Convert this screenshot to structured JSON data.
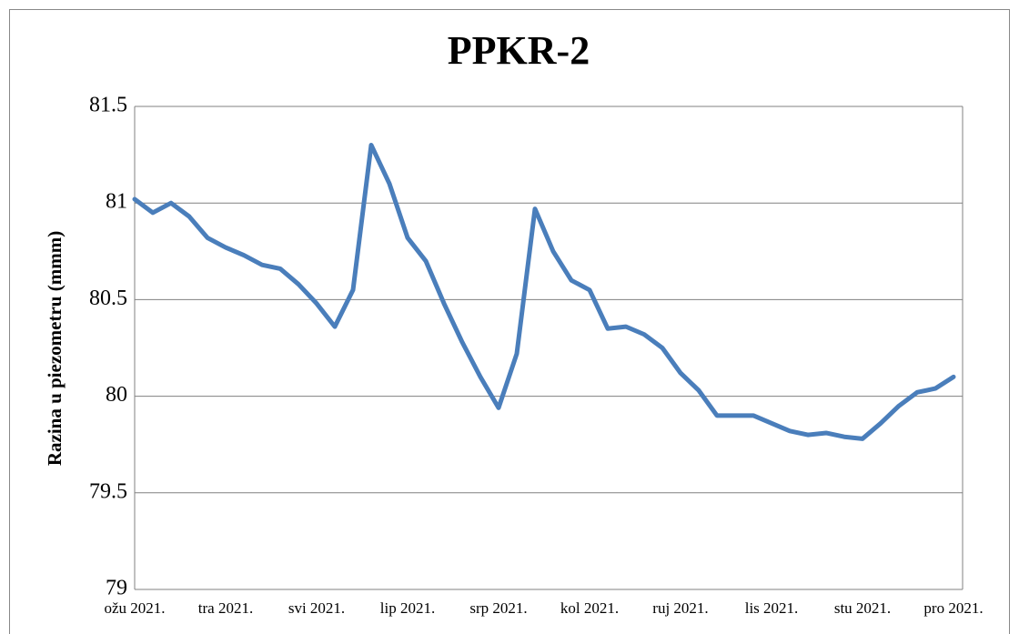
{
  "chart_data": {
    "type": "line",
    "title": "PPKR-2",
    "y_label": "Razina u piezometru (mmm)",
    "categories": [
      "ožu 2021.",
      null,
      null,
      null,
      null,
      "tra 2021.",
      null,
      null,
      null,
      null,
      "svi 2021.",
      null,
      null,
      null,
      null,
      "lip 2021.",
      null,
      null,
      null,
      null,
      "srp 2021.",
      null,
      null,
      null,
      null,
      "kol 2021.",
      null,
      null,
      null,
      null,
      "ruj 2021.",
      null,
      null,
      null,
      null,
      "lis 2021.",
      null,
      null,
      null,
      null,
      "stu 2021.",
      null,
      null,
      null,
      null,
      "pro 2021."
    ],
    "series": [
      {
        "name": "PPKR-2",
        "color": "#4a7ebb",
        "values": [
          81.02,
          80.95,
          81.0,
          80.93,
          80.82,
          80.77,
          80.73,
          80.68,
          80.66,
          80.58,
          80.48,
          80.36,
          80.55,
          81.3,
          81.1,
          80.82,
          80.7,
          80.48,
          80.28,
          80.1,
          79.94,
          80.22,
          80.97,
          80.75,
          80.6,
          80.55,
          80.35,
          80.36,
          80.32,
          80.25,
          80.12,
          80.03,
          79.9,
          79.9,
          79.9,
          79.86,
          79.82,
          79.8,
          79.81,
          79.79,
          79.78,
          79.86,
          79.95,
          80.02,
          80.04,
          80.1
        ]
      }
    ],
    "ylim": [
      79,
      81.5
    ],
    "yticks": [
      79,
      79.5,
      80,
      80.5,
      81,
      81.5
    ],
    "grid": true
  }
}
